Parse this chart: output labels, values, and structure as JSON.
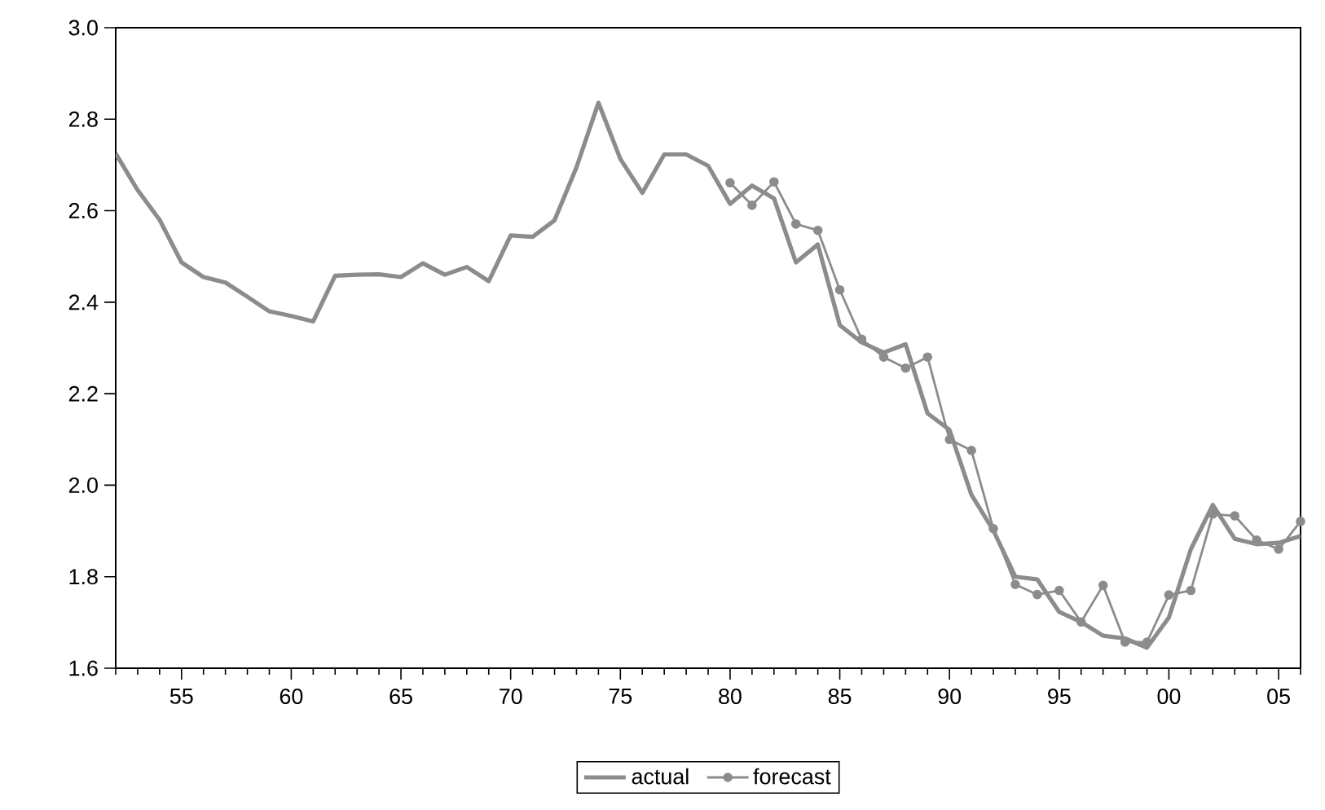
{
  "chart_data": {
    "type": "line",
    "x": [
      1952,
      1953,
      1954,
      1955,
      1956,
      1957,
      1958,
      1959,
      1960,
      1961,
      1962,
      1963,
      1964,
      1965,
      1966,
      1967,
      1968,
      1969,
      1970,
      1971,
      1972,
      1973,
      1974,
      1975,
      1976,
      1977,
      1978,
      1979,
      1980,
      1981,
      1982,
      1983,
      1984,
      1985,
      1986,
      1987,
      1988,
      1989,
      1990,
      1991,
      1992,
      1993,
      1994,
      1995,
      1996,
      1997,
      1998,
      1999,
      2000,
      2001,
      2002,
      2003,
      2004,
      2005,
      2006
    ],
    "series": [
      {
        "name": "actual",
        "color": "#8c8c8c",
        "marker": "none",
        "values": [
          2.725,
          2.645,
          2.58,
          2.487,
          2.455,
          2.443,
          2.412,
          2.38,
          2.37,
          2.358,
          2.458,
          2.46,
          2.461,
          2.455,
          2.485,
          2.46,
          2.477,
          2.446,
          2.546,
          2.543,
          2.579,
          2.695,
          2.836,
          2.713,
          2.639,
          2.723,
          2.723,
          2.698,
          2.615,
          2.655,
          2.627,
          2.487,
          2.526,
          2.35,
          2.312,
          2.29,
          2.308,
          2.157,
          2.121,
          1.979,
          1.901,
          1.8,
          1.794,
          1.723,
          1.701,
          1.671,
          1.665,
          1.645,
          1.711,
          1.86,
          1.957,
          1.883,
          1.871,
          1.874,
          1.889
        ]
      },
      {
        "name": "forecast",
        "color": "#8c8c8c",
        "marker": "circle",
        "x": [
          1980,
          1981,
          1982,
          1983,
          1984,
          1985,
          1986,
          1987,
          1988,
          1989,
          1990,
          1991,
          1992,
          1993,
          1994,
          1995,
          1996,
          1997,
          1998,
          1999,
          2000,
          2001,
          2002,
          2003,
          2004,
          2005,
          2006
        ],
        "values": [
          2.661,
          2.612,
          2.663,
          2.571,
          2.557,
          2.427,
          2.319,
          2.28,
          2.256,
          2.28,
          2.1,
          2.076,
          1.905,
          1.783,
          1.761,
          1.77,
          1.701,
          1.781,
          1.657,
          1.657,
          1.76,
          1.77,
          1.937,
          1.933,
          1.88,
          1.86,
          1.921
        ]
      }
    ],
    "xlim": [
      1952,
      2006
    ],
    "xticks": [
      {
        "value": 1952,
        "label": null
      },
      {
        "value": 1953,
        "label": null
      },
      {
        "value": 1954,
        "label": null
      },
      {
        "value": 1955,
        "label": "55"
      },
      {
        "value": 1956,
        "label": null
      },
      {
        "value": 1957,
        "label": null
      },
      {
        "value": 1958,
        "label": null
      },
      {
        "value": 1959,
        "label": null
      },
      {
        "value": 1960,
        "label": "60"
      },
      {
        "value": 1961,
        "label": null
      },
      {
        "value": 1962,
        "label": null
      },
      {
        "value": 1963,
        "label": null
      },
      {
        "value": 1964,
        "label": null
      },
      {
        "value": 1965,
        "label": "65"
      },
      {
        "value": 1966,
        "label": null
      },
      {
        "value": 1967,
        "label": null
      },
      {
        "value": 1968,
        "label": null
      },
      {
        "value": 1969,
        "label": null
      },
      {
        "value": 1970,
        "label": "70"
      },
      {
        "value": 1971,
        "label": null
      },
      {
        "value": 1972,
        "label": null
      },
      {
        "value": 1973,
        "label": null
      },
      {
        "value": 1974,
        "label": null
      },
      {
        "value": 1975,
        "label": "75"
      },
      {
        "value": 1976,
        "label": null
      },
      {
        "value": 1977,
        "label": null
      },
      {
        "value": 1978,
        "label": null
      },
      {
        "value": 1979,
        "label": null
      },
      {
        "value": 1980,
        "label": "80"
      },
      {
        "value": 1981,
        "label": null
      },
      {
        "value": 1982,
        "label": null
      },
      {
        "value": 1983,
        "label": null
      },
      {
        "value": 1984,
        "label": null
      },
      {
        "value": 1985,
        "label": "85"
      },
      {
        "value": 1986,
        "label": null
      },
      {
        "value": 1987,
        "label": null
      },
      {
        "value": 1988,
        "label": null
      },
      {
        "value": 1989,
        "label": null
      },
      {
        "value": 1990,
        "label": "90"
      },
      {
        "value": 1991,
        "label": null
      },
      {
        "value": 1992,
        "label": null
      },
      {
        "value": 1993,
        "label": null
      },
      {
        "value": 1994,
        "label": null
      },
      {
        "value": 1995,
        "label": "95"
      },
      {
        "value": 1996,
        "label": null
      },
      {
        "value": 1997,
        "label": null
      },
      {
        "value": 1998,
        "label": null
      },
      {
        "value": 1999,
        "label": null
      },
      {
        "value": 2000,
        "label": "00"
      },
      {
        "value": 2001,
        "label": null
      },
      {
        "value": 2002,
        "label": null
      },
      {
        "value": 2003,
        "label": null
      },
      {
        "value": 2004,
        "label": null
      },
      {
        "value": 2005,
        "label": "05"
      },
      {
        "value": 2006,
        "label": null
      }
    ],
    "ylim": [
      1.6,
      3.0
    ],
    "yticks": [
      {
        "value": 1.6,
        "label": "1.6"
      },
      {
        "value": 1.8,
        "label": "1.8"
      },
      {
        "value": 2.0,
        "label": "2.0"
      },
      {
        "value": 2.2,
        "label": "2.2"
      },
      {
        "value": 2.4,
        "label": "2.4"
      },
      {
        "value": 2.6,
        "label": "2.6"
      },
      {
        "value": 2.8,
        "label": "2.8"
      },
      {
        "value": 3.0,
        "label": "3.0"
      }
    ],
    "grid": false,
    "legend": "bottom"
  }
}
